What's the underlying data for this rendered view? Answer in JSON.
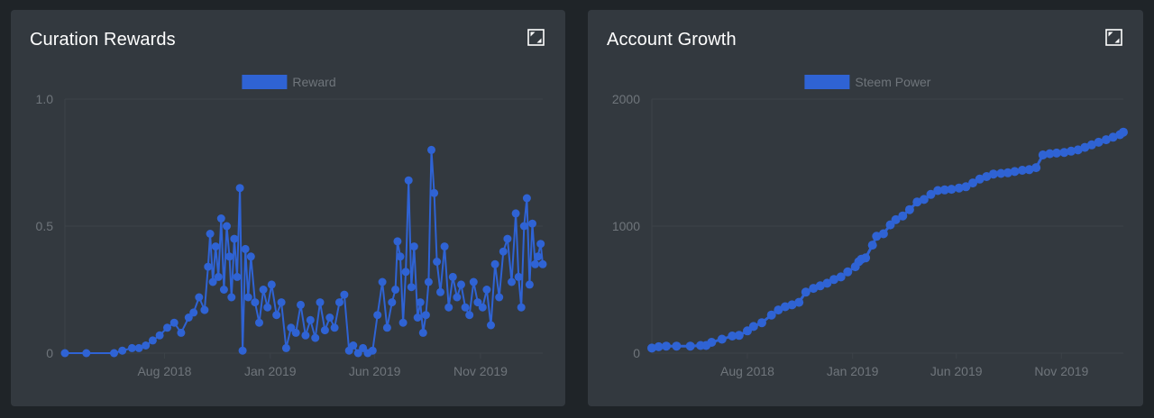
{
  "panels": [
    {
      "title": "Curation Rewards"
    },
    {
      "title": "Account Growth"
    }
  ],
  "colors": {
    "background": "#1f2428",
    "panel": "#33393f",
    "series": "#2f63d4",
    "axis_text": "#6f757b",
    "grid": "#3c4248"
  },
  "icons": {
    "expand": "expand-icon"
  },
  "chart_data": [
    {
      "type": "line",
      "title": "Curation Rewards",
      "legend": {
        "entries": [
          "Reward"
        ],
        "placement": "top-center"
      },
      "x_ticks": [
        "Aug 2018",
        "Jan 2019",
        "Jun 2019",
        "Nov 2019"
      ],
      "y_ticks": [
        "0",
        "0.5",
        "1.0"
      ],
      "ylim": [
        0,
        1.0
      ],
      "xlim": [
        "2018-03-10",
        "2020-01-30"
      ],
      "grid": true,
      "series": [
        {
          "name": "Reward",
          "x": [
            "2018-03-10",
            "2018-04-10",
            "2018-05-20",
            "2018-06-01",
            "2018-06-15",
            "2018-06-25",
            "2018-07-05",
            "2018-07-15",
            "2018-07-25",
            "2018-08-05",
            "2018-08-15",
            "2018-08-25",
            "2018-09-05",
            "2018-09-12",
            "2018-09-20",
            "2018-09-28",
            "2018-10-03",
            "2018-10-06",
            "2018-10-10",
            "2018-10-14",
            "2018-10-18",
            "2018-10-22",
            "2018-10-26",
            "2018-10-30",
            "2018-11-03",
            "2018-11-06",
            "2018-11-10",
            "2018-11-14",
            "2018-11-18",
            "2018-11-22",
            "2018-11-26",
            "2018-11-30",
            "2018-12-04",
            "2018-12-10",
            "2018-12-16",
            "2018-12-22",
            "2018-12-28",
            "2019-01-03",
            "2019-01-10",
            "2019-01-17",
            "2019-01-24",
            "2019-01-31",
            "2019-02-07",
            "2019-02-14",
            "2019-02-21",
            "2019-02-28",
            "2019-03-07",
            "2019-03-14",
            "2019-03-21",
            "2019-03-28",
            "2019-04-04",
            "2019-04-11",
            "2019-04-18",
            "2019-04-25",
            "2019-05-01",
            "2019-05-08",
            "2019-05-15",
            "2019-05-22",
            "2019-05-29",
            "2019-06-05",
            "2019-06-12",
            "2019-06-19",
            "2019-06-26",
            "2019-07-01",
            "2019-07-04",
            "2019-07-08",
            "2019-07-12",
            "2019-07-16",
            "2019-07-20",
            "2019-07-24",
            "2019-07-28",
            "2019-08-02",
            "2019-08-06",
            "2019-08-10",
            "2019-08-14",
            "2019-08-18",
            "2019-08-22",
            "2019-08-26",
            "2019-08-30",
            "2019-09-04",
            "2019-09-10",
            "2019-09-16",
            "2019-09-22",
            "2019-09-28",
            "2019-10-04",
            "2019-10-10",
            "2019-10-16",
            "2019-10-22",
            "2019-10-28",
            "2019-11-04",
            "2019-11-10",
            "2019-11-16",
            "2019-11-22",
            "2019-11-28",
            "2019-12-04",
            "2019-12-10",
            "2019-12-16",
            "2019-12-22",
            "2019-12-26",
            "2019-12-30",
            "2020-01-03",
            "2020-01-07",
            "2020-01-11",
            "2020-01-15",
            "2020-01-19",
            "2020-01-23",
            "2020-01-27",
            "2020-01-30"
          ],
          "values": [
            0,
            0,
            0,
            0.01,
            0.02,
            0.02,
            0.03,
            0.05,
            0.07,
            0.1,
            0.12,
            0.08,
            0.14,
            0.16,
            0.22,
            0.17,
            0.34,
            0.47,
            0.28,
            0.42,
            0.3,
            0.53,
            0.25,
            0.5,
            0.38,
            0.22,
            0.45,
            0.3,
            0.65,
            0.01,
            0.41,
            0.22,
            0.38,
            0.2,
            0.12,
            0.25,
            0.18,
            0.27,
            0.15,
            0.2,
            0.02,
            0.1,
            0.08,
            0.19,
            0.07,
            0.13,
            0.06,
            0.2,
            0.09,
            0.14,
            0.1,
            0.2,
            0.23,
            0.01,
            0.03,
            0,
            0.02,
            0,
            0.01,
            0.15,
            0.28,
            0.1,
            0.2,
            0.25,
            0.44,
            0.38,
            0.12,
            0.32,
            0.68,
            0.26,
            0.42,
            0.14,
            0.2,
            0.08,
            0.15,
            0.28,
            0.8,
            0.63,
            0.36,
            0.24,
            0.42,
            0.18,
            0.3,
            0.22,
            0.27,
            0.18,
            0.15,
            0.28,
            0.2,
            0.18,
            0.25,
            0.11,
            0.35,
            0.22,
            0.4,
            0.45,
            0.28,
            0.55,
            0.3,
            0.18,
            0.5,
            0.61,
            0.27,
            0.51,
            0.35,
            0.38,
            0.43,
            0.35
          ]
        }
      ]
    },
    {
      "type": "line",
      "title": "Account Growth",
      "legend": {
        "entries": [
          "Steem Power"
        ],
        "placement": "top-center"
      },
      "x_ticks": [
        "Aug 2018",
        "Jan 2019",
        "Jun 2019",
        "Nov 2019"
      ],
      "y_ticks": [
        "0",
        "1000",
        "2000"
      ],
      "ylim": [
        0,
        2000
      ],
      "xlim": [
        "2018-03-15",
        "2020-01-30"
      ],
      "grid": true,
      "series": [
        {
          "name": "Steem Power",
          "x": [
            "2018-03-15",
            "2018-03-25",
            "2018-04-05",
            "2018-04-20",
            "2018-05-10",
            "2018-05-25",
            "2018-06-02",
            "2018-06-10",
            "2018-06-25",
            "2018-07-10",
            "2018-07-20",
            "2018-08-01",
            "2018-08-10",
            "2018-08-22",
            "2018-09-05",
            "2018-09-15",
            "2018-09-25",
            "2018-10-05",
            "2018-10-15",
            "2018-10-25",
            "2018-11-05",
            "2018-11-15",
            "2018-11-25",
            "2018-12-05",
            "2018-12-15",
            "2018-12-25",
            "2019-01-05",
            "2019-01-10",
            "2019-01-14",
            "2019-01-20",
            "2019-01-30",
            "2019-02-05",
            "2019-02-15",
            "2019-02-25",
            "2019-03-05",
            "2019-03-15",
            "2019-03-25",
            "2019-04-05",
            "2019-04-15",
            "2019-04-25",
            "2019-05-05",
            "2019-05-15",
            "2019-05-25",
            "2019-06-05",
            "2019-06-15",
            "2019-06-25",
            "2019-07-05",
            "2019-07-15",
            "2019-07-25",
            "2019-08-05",
            "2019-08-15",
            "2019-08-25",
            "2019-09-05",
            "2019-09-15",
            "2019-09-25",
            "2019-10-05",
            "2019-10-15",
            "2019-10-25",
            "2019-11-05",
            "2019-11-15",
            "2019-11-25",
            "2019-12-05",
            "2019-12-15",
            "2019-12-25",
            "2020-01-05",
            "2020-01-15",
            "2020-01-25",
            "2020-01-30"
          ],
          "values": [
            40,
            50,
            55,
            55,
            55,
            60,
            60,
            85,
            110,
            135,
            140,
            175,
            210,
            240,
            300,
            340,
            365,
            380,
            400,
            480,
            510,
            530,
            550,
            580,
            600,
            640,
            680,
            720,
            740,
            750,
            850,
            920,
            940,
            1010,
            1050,
            1080,
            1130,
            1190,
            1210,
            1250,
            1280,
            1285,
            1290,
            1300,
            1310,
            1340,
            1370,
            1390,
            1410,
            1415,
            1420,
            1430,
            1440,
            1445,
            1460,
            1560,
            1570,
            1575,
            1580,
            1590,
            1600,
            1620,
            1640,
            1660,
            1680,
            1700,
            1720,
            1740
          ]
        }
      ]
    }
  ]
}
